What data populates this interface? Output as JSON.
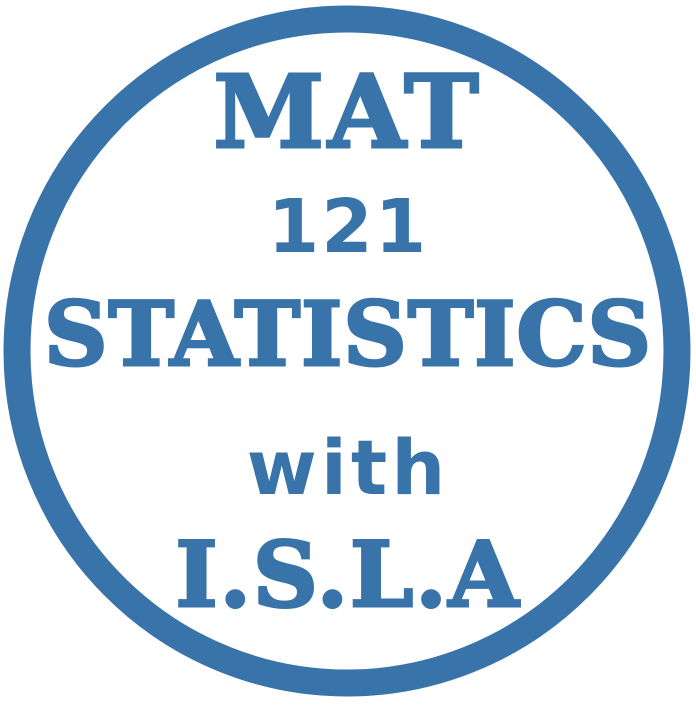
{
  "colors": {
    "brand": "#3873a9",
    "background": "#ffffff"
  },
  "badge": {
    "line1": "MAT",
    "line2": "121",
    "line3": "STATISTICS",
    "line4": "with",
    "line5": "I.S.L.A"
  }
}
